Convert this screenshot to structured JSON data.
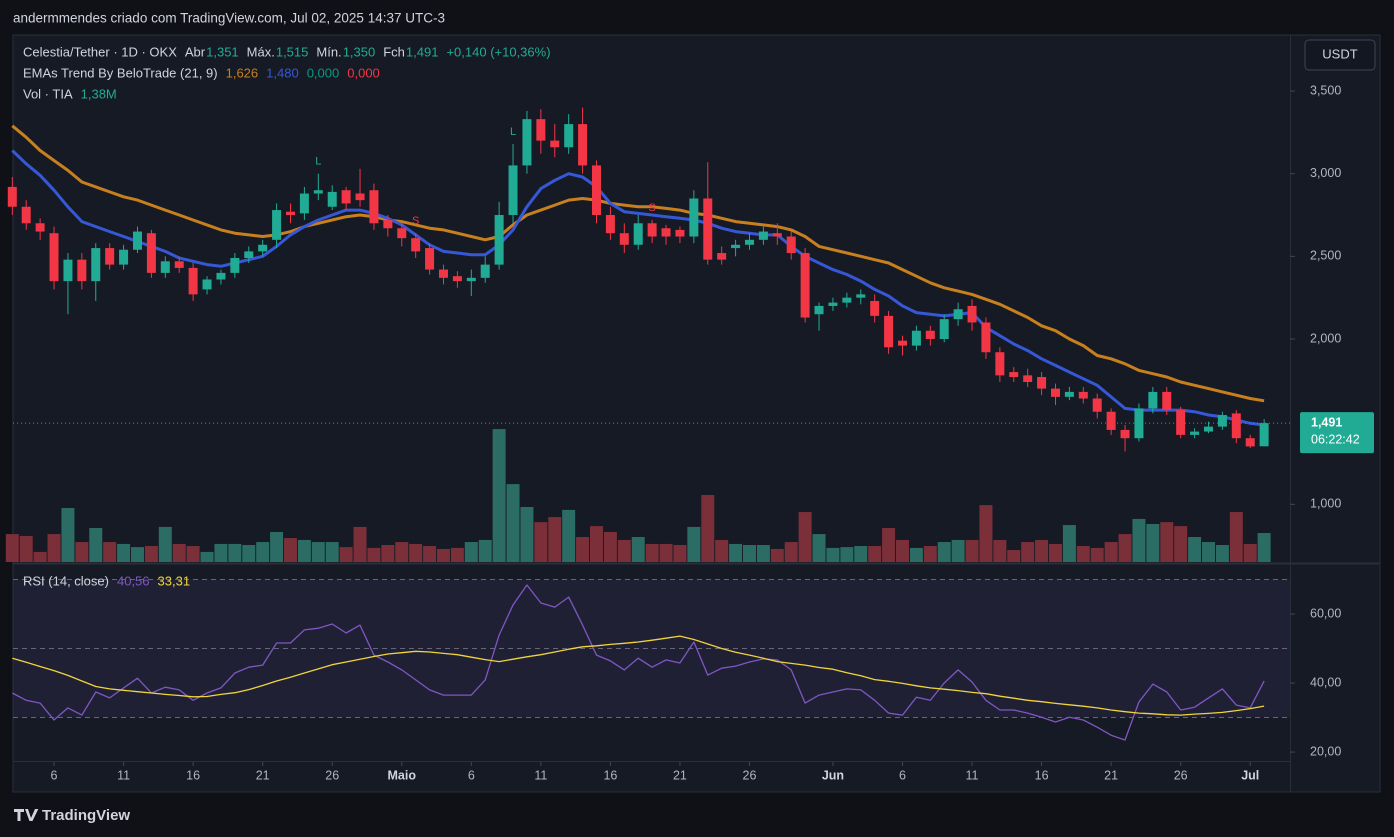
{
  "header": "andermmendes criado com TradingView.com, Jul 02, 2025 14:37 UTC-3",
  "footer": "TradingView",
  "chart_data": [
    {
      "type": "candlestick",
      "title": "Celestia/Tether · 1D · OKX",
      "currency": "USDT",
      "up_color": "#22ab94",
      "down_color": "#f23645",
      "open": [
        2.92,
        2.8,
        2.7,
        2.64,
        2.35,
        2.48,
        2.35,
        2.55,
        2.45,
        2.54,
        2.64,
        2.4,
        2.47,
        2.43,
        2.3,
        2.36,
        2.4,
        2.49,
        2.53,
        2.6,
        2.77,
        2.76,
        2.88,
        2.8,
        2.9,
        2.88,
        2.9,
        2.72,
        2.67,
        2.61,
        2.55,
        2.42,
        2.38,
        2.35,
        2.37,
        2.45,
        2.75,
        3.05,
        3.33,
        3.2,
        3.16,
        3.3,
        3.05,
        2.75,
        2.64,
        2.57,
        2.7,
        2.67,
        2.66,
        2.62,
        2.85,
        2.52,
        2.55,
        2.57,
        2.6,
        2.64,
        2.62,
        2.52,
        2.15,
        2.2,
        2.22,
        2.25,
        2.23,
        2.14,
        1.99,
        1.96,
        2.05,
        2.0,
        2.12,
        2.2,
        2.1,
        1.92,
        1.8,
        1.78,
        1.77,
        1.7,
        1.65,
        1.68,
        1.64,
        1.56,
        1.45,
        1.4,
        1.58,
        1.68,
        1.57,
        1.42,
        1.44,
        1.47,
        1.55,
        1.4,
        1.351
      ],
      "high": [
        2.98,
        2.84,
        2.73,
        2.68,
        2.52,
        2.52,
        2.58,
        2.58,
        2.57,
        2.68,
        2.66,
        2.5,
        2.5,
        2.46,
        2.38,
        2.42,
        2.52,
        2.56,
        2.6,
        2.82,
        2.82,
        2.92,
        3.0,
        2.93,
        2.92,
        3.03,
        2.94,
        2.75,
        2.7,
        2.64,
        2.58,
        2.45,
        2.41,
        2.42,
        2.5,
        2.83,
        3.18,
        3.38,
        3.39,
        3.3,
        3.36,
        3.4,
        3.08,
        2.8,
        2.7,
        2.75,
        2.72,
        2.69,
        2.68,
        2.9,
        3.07,
        2.56,
        2.6,
        2.64,
        2.68,
        2.7,
        2.65,
        2.55,
        2.22,
        2.25,
        2.28,
        2.3,
        2.27,
        2.17,
        2.02,
        2.08,
        2.08,
        2.15,
        2.22,
        2.24,
        2.13,
        1.95,
        1.83,
        1.82,
        1.8,
        1.73,
        1.71,
        1.71,
        1.67,
        1.58,
        1.48,
        1.61,
        1.71,
        1.71,
        1.59,
        1.46,
        1.5,
        1.56,
        1.57,
        1.42,
        1.515
      ],
      "low": [
        2.75,
        2.66,
        2.6,
        2.3,
        2.15,
        2.3,
        2.23,
        2.42,
        2.42,
        2.52,
        2.37,
        2.37,
        2.4,
        2.23,
        2.27,
        2.33,
        2.37,
        2.46,
        2.5,
        2.55,
        2.7,
        2.72,
        2.84,
        2.78,
        2.78,
        2.8,
        2.66,
        2.62,
        2.56,
        2.49,
        2.39,
        2.33,
        2.31,
        2.26,
        2.34,
        2.42,
        2.7,
        3.0,
        3.12,
        3.1,
        3.12,
        3.0,
        2.7,
        2.6,
        2.52,
        2.54,
        2.58,
        2.57,
        2.58,
        2.58,
        2.45,
        2.45,
        2.5,
        2.54,
        2.57,
        2.57,
        2.48,
        2.1,
        2.05,
        2.17,
        2.19,
        2.21,
        2.1,
        1.91,
        1.9,
        1.93,
        1.96,
        1.98,
        2.08,
        2.05,
        1.88,
        1.74,
        1.74,
        1.71,
        1.66,
        1.6,
        1.63,
        1.61,
        1.52,
        1.42,
        1.32,
        1.38,
        1.55,
        1.54,
        1.4,
        1.4,
        1.43,
        1.45,
        1.37,
        1.34,
        1.35
      ],
      "close": [
        2.8,
        2.7,
        2.65,
        2.35,
        2.48,
        2.35,
        2.55,
        2.45,
        2.54,
        2.65,
        2.4,
        2.47,
        2.43,
        2.27,
        2.36,
        2.4,
        2.49,
        2.53,
        2.57,
        2.78,
        2.75,
        2.88,
        2.9,
        2.89,
        2.82,
        2.84,
        2.7,
        2.67,
        2.61,
        2.53,
        2.42,
        2.37,
        2.35,
        2.37,
        2.45,
        2.75,
        3.05,
        3.33,
        3.2,
        3.16,
        3.3,
        3.05,
        2.75,
        2.64,
        2.57,
        2.7,
        2.62,
        2.62,
        2.62,
        2.85,
        2.48,
        2.48,
        2.57,
        2.6,
        2.65,
        2.62,
        2.52,
        2.13,
        2.2,
        2.22,
        2.25,
        2.27,
        2.14,
        1.95,
        1.96,
        2.05,
        2.0,
        2.12,
        2.18,
        2.1,
        1.92,
        1.78,
        1.77,
        1.74,
        1.7,
        1.65,
        1.68,
        1.64,
        1.56,
        1.45,
        1.4,
        1.58,
        1.68,
        1.57,
        1.42,
        1.44,
        1.47,
        1.54,
        1.4,
        1.35,
        1.491
      ],
      "last_labels": {
        "open": "Abr",
        "high": "Máx.",
        "low": "Mín.",
        "close": "Fch"
      },
      "last_value_labels": {
        "open": "1,351",
        "high": "1,515",
        "low": "1,350",
        "close": "1,491"
      },
      "change_label": "+0,140 (+10,36%)",
      "countdown": "06:22:42",
      "signals": [
        {
          "label": "L",
          "index": 22,
          "color": "#22ab94"
        },
        {
          "label": "S",
          "index": 29,
          "color": "#f23645"
        },
        {
          "label": "L",
          "index": 36,
          "color": "#22ab94"
        },
        {
          "label": "S",
          "index": 46,
          "color": "#f23645"
        }
      ],
      "ema": {
        "name": "EMAs Trend By BeloTrade (21, 9)",
        "series": [
          {
            "color": "#c8801e",
            "last_label": "1,626",
            "values": [
              3.29,
              3.22,
              3.14,
              3.08,
              3.02,
              2.95,
              2.92,
              2.89,
              2.86,
              2.84,
              2.81,
              2.78,
              2.75,
              2.72,
              2.69,
              2.66,
              2.64,
              2.63,
              2.62,
              2.63,
              2.65,
              2.68,
              2.7,
              2.72,
              2.74,
              2.75,
              2.74,
              2.72,
              2.71,
              2.69,
              2.67,
              2.66,
              2.64,
              2.62,
              2.6,
              2.62,
              2.69,
              2.75,
              2.78,
              2.81,
              2.84,
              2.85,
              2.84,
              2.82,
              2.81,
              2.8,
              2.8,
              2.79,
              2.78,
              2.76,
              2.75,
              2.73,
              2.71,
              2.7,
              2.69,
              2.68,
              2.66,
              2.62,
              2.56,
              2.54,
              2.52,
              2.5,
              2.48,
              2.46,
              2.42,
              2.38,
              2.34,
              2.31,
              2.29,
              2.27,
              2.24,
              2.21,
              2.17,
              2.13,
              2.08,
              2.05,
              2.0,
              1.96,
              1.9,
              1.88,
              1.85,
              1.81,
              1.79,
              1.77,
              1.74,
              1.72,
              1.7,
              1.68,
              1.66,
              1.64,
              1.626
            ]
          },
          {
            "color": "#3658d6",
            "last_label": "1,480",
            "values": [
              3.14,
              3.06,
              2.99,
              2.9,
              2.8,
              2.71,
              2.68,
              2.65,
              2.62,
              2.59,
              2.56,
              2.53,
              2.49,
              2.47,
              2.45,
              2.44,
              2.46,
              2.48,
              2.5,
              2.56,
              2.63,
              2.68,
              2.72,
              2.75,
              2.78,
              2.78,
              2.76,
              2.73,
              2.69,
              2.63,
              2.57,
              2.53,
              2.52,
              2.51,
              2.51,
              2.57,
              2.66,
              2.8,
              2.91,
              2.96,
              3.0,
              2.98,
              2.92,
              2.82,
              2.77,
              2.76,
              2.75,
              2.74,
              2.73,
              2.72,
              2.7,
              2.67,
              2.65,
              2.64,
              2.63,
              2.63,
              2.56,
              2.5,
              2.46,
              2.42,
              2.39,
              2.35,
              2.3,
              2.26,
              2.2,
              2.16,
              2.15,
              2.14,
              2.15,
              2.16,
              2.07,
              2.02,
              1.97,
              1.93,
              1.88,
              1.84,
              1.8,
              1.76,
              1.72,
              1.65,
              1.58,
              1.57,
              1.57,
              1.57,
              1.57,
              1.56,
              1.54,
              1.53,
              1.51,
              1.49,
              1.48
            ]
          }
        ],
        "extra": [
          {
            "label": "0,000",
            "color": "#089981"
          },
          {
            "label": "0,000",
            "color": "#f23645"
          }
        ]
      },
      "volume": {
        "name": "Vol · TIA",
        "last_label": "1,38M",
        "up_color": "#2b6c64",
        "down_color": "#7a2f39",
        "values": [
          1.33,
          1.24,
          0.48,
          1.33,
          2.57,
          0.95,
          1.62,
          0.95,
          0.86,
          0.71,
          0.76,
          1.67,
          0.86,
          0.76,
          0.48,
          0.86,
          0.86,
          0.81,
          0.95,
          1.43,
          1.14,
          1.05,
          0.95,
          0.95,
          0.71,
          1.67,
          0.67,
          0.81,
          0.95,
          0.86,
          0.76,
          0.62,
          0.67,
          0.95,
          1.05,
          6.33,
          3.71,
          2.62,
          1.9,
          2.14,
          2.48,
          1.19,
          1.71,
          1.43,
          1.05,
          1.19,
          0.86,
          0.86,
          0.81,
          1.67,
          3.19,
          1.05,
          0.86,
          0.81,
          0.81,
          0.62,
          0.95,
          2.38,
          1.33,
          0.67,
          0.71,
          0.76,
          0.76,
          1.62,
          1.05,
          0.67,
          0.76,
          0.95,
          1.05,
          1.05,
          2.71,
          1.05,
          0.57,
          0.95,
          1.05,
          0.86,
          1.76,
          0.76,
          0.67,
          0.95,
          1.33,
          2.05,
          1.81,
          1.9,
          1.71,
          1.19,
          0.95,
          0.81,
          2.38,
          0.86,
          1.38
        ]
      },
      "ylim": [
        0.651,
        3.839
      ],
      "yticks": [
        {
          "value": 1,
          "label": "1,000"
        },
        {
          "value": 2,
          "label": "2,000"
        },
        {
          "value": 2.5,
          "label": "2,500"
        },
        {
          "value": 3,
          "label": "3,000"
        },
        {
          "value": 3.5,
          "label": "3,500"
        }
      ],
      "xlim": [
        0.05,
        91.86
      ],
      "xticks": [
        {
          "value": 3,
          "label": "6"
        },
        {
          "value": 8,
          "label": "11"
        },
        {
          "value": 13,
          "label": "16"
        },
        {
          "value": 18,
          "label": "21"
        },
        {
          "value": 23,
          "label": "26"
        },
        {
          "value": 28,
          "label": "Maio"
        },
        {
          "value": 33,
          "label": "6"
        },
        {
          "value": 38,
          "label": "11"
        },
        {
          "value": 43,
          "label": "16"
        },
        {
          "value": 48,
          "label": "21"
        },
        {
          "value": 53,
          "label": "26"
        },
        {
          "value": 59,
          "label": "Jun"
        },
        {
          "value": 64,
          "label": "6"
        },
        {
          "value": 69,
          "label": "11"
        },
        {
          "value": 74,
          "label": "16"
        },
        {
          "value": 79,
          "label": "21"
        },
        {
          "value": 84,
          "label": "26"
        },
        {
          "value": 89,
          "label": "Jul"
        }
      ]
    },
    {
      "type": "line",
      "title": "RSI (14, close)",
      "series": [
        {
          "color": "#7e57c2",
          "last_label": "40,56",
          "values": [
            37.1,
            35.0,
            34.2,
            29.3,
            32.8,
            30.7,
            37.4,
            35.7,
            38.6,
            41.4,
            37.1,
            38.8,
            38.0,
            35.0,
            37.1,
            38.6,
            42.9,
            44.6,
            45.2,
            51.6,
            51.6,
            55.4,
            55.9,
            57.1,
            54.5,
            56.8,
            48.1,
            46.1,
            43.8,
            40.9,
            38.0,
            36.5,
            36.5,
            36.5,
            40.9,
            53.9,
            62.6,
            68.4,
            63.2,
            62.0,
            64.9,
            56.8,
            48.1,
            46.4,
            43.8,
            47.2,
            44.6,
            46.7,
            45.8,
            51.9,
            42.3,
            44.3,
            44.9,
            46.1,
            47.0,
            46.7,
            43.8,
            34.2,
            36.5,
            37.4,
            38.3,
            38.0,
            35.0,
            31.3,
            30.7,
            35.9,
            35.0,
            40.0,
            43.8,
            40.3,
            35.0,
            32.2,
            32.2,
            31.3,
            30.1,
            28.7,
            30.1,
            29.3,
            27.2,
            24.9,
            23.5,
            34.5,
            39.7,
            37.4,
            32.2,
            33.0,
            35.7,
            38.3,
            33.6,
            32.8,
            40.56
          ]
        },
        {
          "color": "#f0d43a",
          "last_label": "33,31",
          "values": [
            47.2,
            46.0,
            44.8,
            43.6,
            42.2,
            40.6,
            39.0,
            38.3,
            37.9,
            37.5,
            37.1,
            36.7,
            36.4,
            36.0,
            36.1,
            36.7,
            37.2,
            38.1,
            39.3,
            40.6,
            41.7,
            42.9,
            44.1,
            45.3,
            46.1,
            46.9,
            47.7,
            48.4,
            48.8,
            49.2,
            49.0,
            48.6,
            48.2,
            47.5,
            46.8,
            46.2,
            46.9,
            47.6,
            48.2,
            49.0,
            49.8,
            50.5,
            50.8,
            51.2,
            51.5,
            51.9,
            52.4,
            53.0,
            53.6,
            52.6,
            51.3,
            50.0,
            48.9,
            48.1,
            47.2,
            46.2,
            45.7,
            45.2,
            44.5,
            44.0,
            43.0,
            42.1,
            41.0,
            40.5,
            39.9,
            39.2,
            38.6,
            38.2,
            37.8,
            37.3,
            36.9,
            36.2,
            35.6,
            35.0,
            34.6,
            34.1,
            33.7,
            33.3,
            32.8,
            32.2,
            31.7,
            31.3,
            31.1,
            30.8,
            30.7,
            31.0,
            31.2,
            31.5,
            32.0,
            32.6,
            33.31
          ]
        }
      ],
      "bands": [
        70,
        50,
        30
      ],
      "band_fill": "#7e57c2",
      "ylim": [
        17.7,
        74.2
      ],
      "yticks": [
        {
          "value": 60,
          "label": "60,00"
        },
        {
          "value": 40,
          "label": "40,00"
        },
        {
          "value": 20,
          "label": "20,00"
        }
      ],
      "xlim": [
        0.05,
        91.86
      ]
    }
  ]
}
